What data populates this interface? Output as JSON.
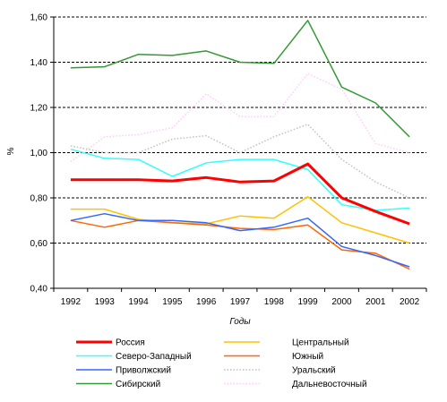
{
  "chart_data": {
    "type": "line",
    "title": "",
    "xlabel": "Годы",
    "ylabel": "%",
    "x": [
      "1992",
      "1993",
      "1994",
      "1995",
      "1996",
      "1997",
      "1998",
      "1999",
      "2000",
      "2001",
      "2002"
    ],
    "ylim": [
      0.4,
      1.6
    ],
    "yticks": [
      "0,40",
      "0,60",
      "0,80",
      "1,00",
      "1,20",
      "1,40",
      "1,60"
    ],
    "grid": "horizontal dashed",
    "legend_position": "bottom, two columns",
    "series": [
      {
        "name": "Россия",
        "color": "#ff0000",
        "dash": "solid",
        "width": 3,
        "values": [
          0.88,
          0.88,
          0.88,
          0.875,
          0.89,
          0.87,
          0.875,
          0.95,
          0.8,
          0.74,
          0.685
        ]
      },
      {
        "name": "Центральный",
        "color": "#ffc000",
        "dash": "solid",
        "width": 1.5,
        "values": [
          0.75,
          0.75,
          0.705,
          0.69,
          0.685,
          0.72,
          0.71,
          0.805,
          0.69,
          0.645,
          0.6
        ]
      },
      {
        "name": "Северо-Западный",
        "color": "#33ffff",
        "dash": "solid",
        "width": 1.5,
        "values": [
          1.015,
          0.975,
          0.97,
          0.895,
          0.955,
          0.97,
          0.97,
          0.925,
          0.77,
          0.745,
          0.755
        ]
      },
      {
        "name": "Южный",
        "color": "#ff6600",
        "dash": "solid",
        "width": 1.5,
        "values": [
          0.7,
          0.67,
          0.7,
          0.69,
          0.68,
          0.665,
          0.66,
          0.68,
          0.57,
          0.555,
          0.485
        ]
      },
      {
        "name": "Приволжский",
        "color": "#3366ff",
        "dash": "solid",
        "width": 1.5,
        "values": [
          0.7,
          0.73,
          0.7,
          0.7,
          0.69,
          0.655,
          0.67,
          0.71,
          0.585,
          0.545,
          0.495
        ]
      },
      {
        "name": "Уральский",
        "color": "#c0c0c0",
        "dash": "dotted",
        "width": 1.5,
        "values": [
          1.03,
          1.0,
          1.0,
          1.06,
          1.075,
          1.0,
          1.07,
          1.125,
          0.97,
          0.87,
          0.8
        ]
      },
      {
        "name": "Сибирский",
        "color": "#339933",
        "dash": "solid",
        "width": 1.5,
        "values": [
          1.375,
          1.38,
          1.435,
          1.43,
          1.45,
          1.4,
          1.395,
          1.585,
          1.29,
          1.22,
          1.07
        ]
      },
      {
        "name": "Дальневосточный",
        "color": "#ffccff",
        "dash": "dotted",
        "width": 1.5,
        "values": [
          0.96,
          1.07,
          1.08,
          1.11,
          1.26,
          1.16,
          1.16,
          1.35,
          1.28,
          1.04,
          1.0
        ]
      }
    ]
  }
}
